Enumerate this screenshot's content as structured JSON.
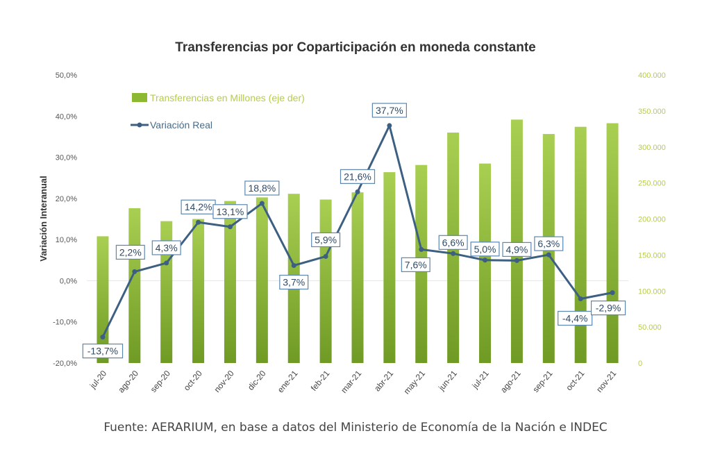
{
  "title": "Transferencias por Coparticipación en moneda constante",
  "source": "Fuente: AERARIUM, en base a datos del Ministerio de Economía de la Nación e INDEC",
  "colors": {
    "bar": "#8cb832",
    "line": "#3c5f82",
    "label_border": "#5b86b0",
    "right_axis": "#b6cc4a"
  },
  "chart_data": {
    "type": "bar",
    "title": "Transferencias por Coparticipación en moneda constante",
    "ylabel": "Variación Interanual",
    "categories": [
      "jul-20",
      "ago-20",
      "sep-20",
      "oct-20",
      "nov-20",
      "dic-20",
      "ene-21",
      "feb-21",
      "mar-21",
      "abr-21",
      "may-21",
      "jun-21",
      "jul-21",
      "ago-21",
      "sep-21",
      "oct-21",
      "nov-21"
    ],
    "series": [
      {
        "name": "Transferencias en Millones (eje der)",
        "type": "bar",
        "axis": "right",
        "values": [
          176000,
          215000,
          197000,
          200000,
          225000,
          230000,
          235000,
          227000,
          237000,
          265000,
          275000,
          320000,
          277000,
          338000,
          318000,
          328000,
          333000
        ]
      },
      {
        "name": "Variación Real",
        "type": "line",
        "axis": "left",
        "values": [
          -13.7,
          2.2,
          4.3,
          14.2,
          13.1,
          18.8,
          3.7,
          5.9,
          21.6,
          37.7,
          7.6,
          6.6,
          5.0,
          4.9,
          6.3,
          -4.4,
          -2.9
        ],
        "labels": [
          "-13,7%",
          "2,2%",
          "4,3%",
          "14,2%",
          "13,1%",
          "18,8%",
          "3,7%",
          "5,9%",
          "21,6%",
          "37,7%",
          "7,6%",
          "6,6%",
          "5,0%",
          "4,9%",
          "6,3%",
          "-4,4%",
          "-2,9%"
        ]
      }
    ],
    "y_left": {
      "range": [
        -20,
        50
      ],
      "ticks": [
        -20,
        -10,
        0,
        10,
        20,
        30,
        40,
        50
      ],
      "tick_labels": [
        "-20,0%",
        "-10,0%",
        "0,0%",
        "10,0%",
        "20,0%",
        "30,0%",
        "40,0%",
        "50,0%"
      ]
    },
    "y_right": {
      "range": [
        0,
        400000
      ],
      "ticks": [
        0,
        50000,
        100000,
        150000,
        200000,
        250000,
        300000,
        350000,
        400000
      ],
      "tick_labels": [
        "0",
        "50.000",
        "100.000",
        "150.000",
        "200.000",
        "250.000",
        "300.000",
        "350.000",
        "400.000"
      ]
    },
    "grid": false,
    "legend_position": "top-left"
  }
}
